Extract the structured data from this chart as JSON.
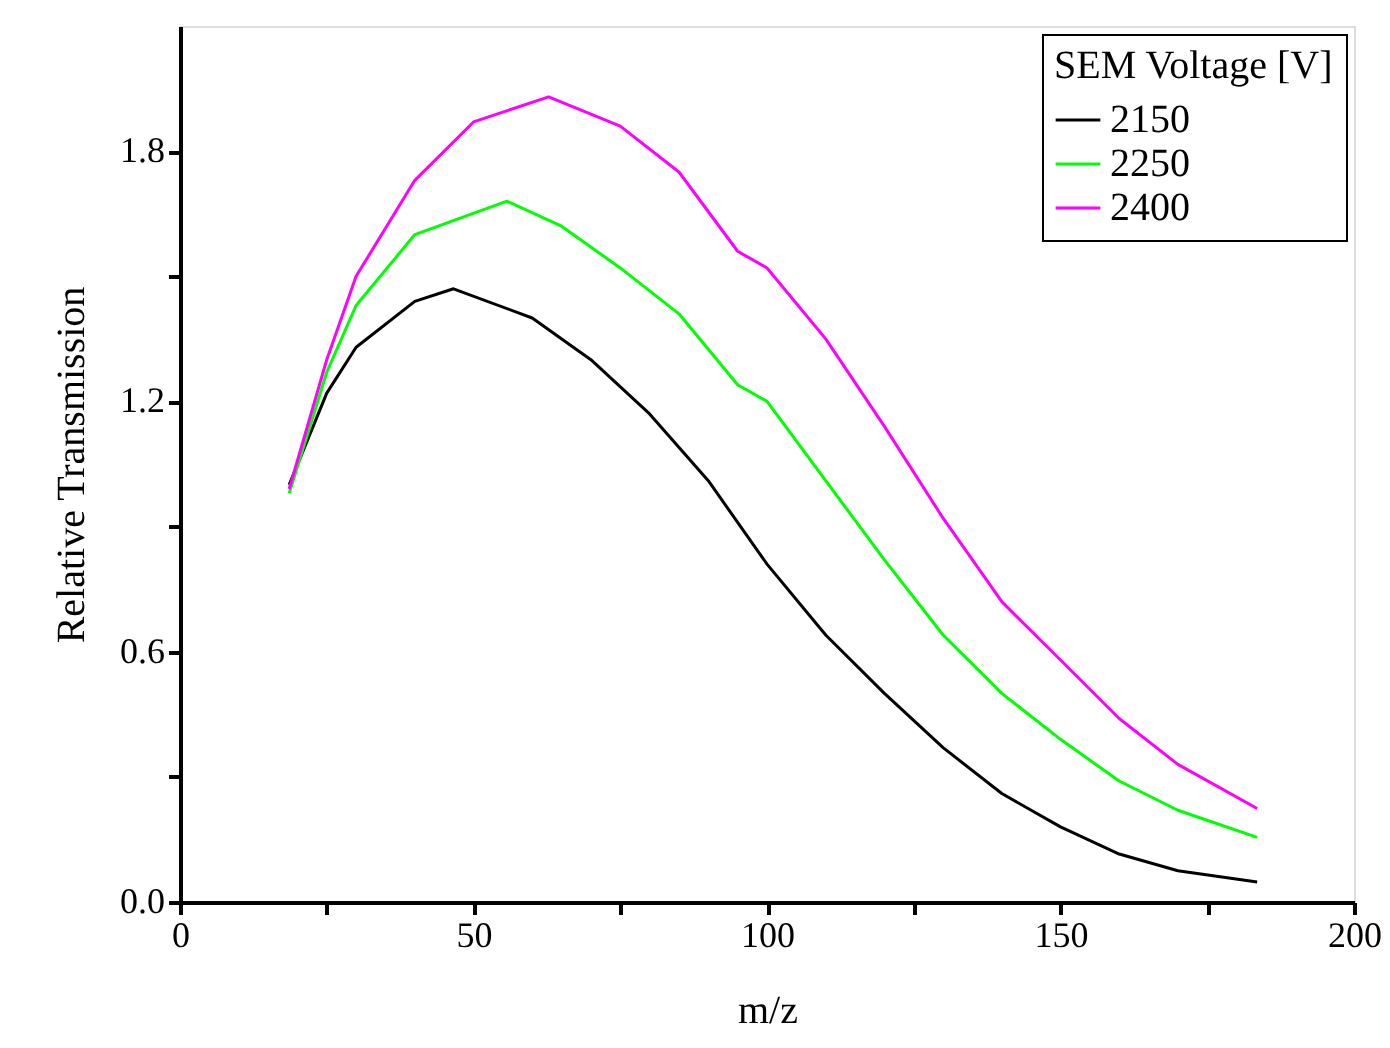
{
  "chart_data": {
    "type": "line",
    "xlabel": "m/z",
    "ylabel": "Relative Transmission",
    "legend_title": "SEM Voltage [V]",
    "legend": "top right",
    "grid": false,
    "marker": "none",
    "line_style": "solid",
    "xlim": [
      0,
      200
    ],
    "ylim": [
      0,
      2.1
    ],
    "xticks": [
      0,
      {
        "value": 25,
        "label": null
      },
      50,
      {
        "value": 75,
        "label": null
      },
      100,
      {
        "value": 125,
        "label": null
      },
      150,
      {
        "value": 175,
        "label": null
      },
      200
    ],
    "yticks": [
      {
        "value": 0,
        "label": "0.0"
      },
      {
        "value": 0.3,
        "label": null
      },
      0.6,
      {
        "value": 0.9,
        "label": null
      },
      1.2,
      {
        "value": 1.5,
        "label": null
      },
      1.8
    ],
    "series": [
      {
        "name": "2150",
        "color": "#000000",
        "x": [
          18.6,
          25,
          30,
          40,
          46.6,
          60,
          70,
          80,
          90,
          100,
          110,
          120,
          130,
          140,
          150,
          160,
          170,
          183.5
        ],
        "values": [
          1.0,
          1.22,
          1.33,
          1.44,
          1.47,
          1.4,
          1.3,
          1.17,
          1.01,
          0.81,
          0.64,
          0.5,
          0.37,
          0.26,
          0.18,
          0.115,
          0.075,
          0.048
        ]
      },
      {
        "name": "2250",
        "color": "#00ff00",
        "x": [
          18.6,
          25,
          30,
          40,
          55.7,
          65,
          75,
          85,
          95,
          100,
          110,
          120,
          130,
          140,
          150,
          160,
          170,
          183.5
        ],
        "values": [
          0.98,
          1.27,
          1.43,
          1.6,
          1.68,
          1.62,
          1.52,
          1.41,
          1.24,
          1.2,
          1.01,
          0.82,
          0.64,
          0.5,
          0.39,
          0.29,
          0.22,
          0.155
        ]
      },
      {
        "name": "2400",
        "color": "#ff00ff",
        "x": [
          18.6,
          25,
          30,
          40,
          50,
          62.8,
          75,
          85,
          95,
          100,
          110,
          120,
          130,
          140,
          150,
          160,
          170,
          183.5
        ],
        "values": [
          0.99,
          1.3,
          1.5,
          1.73,
          1.87,
          1.93,
          1.86,
          1.75,
          1.56,
          1.52,
          1.35,
          1.14,
          0.92,
          0.72,
          0.58,
          0.44,
          0.33,
          0.224
        ]
      }
    ]
  }
}
